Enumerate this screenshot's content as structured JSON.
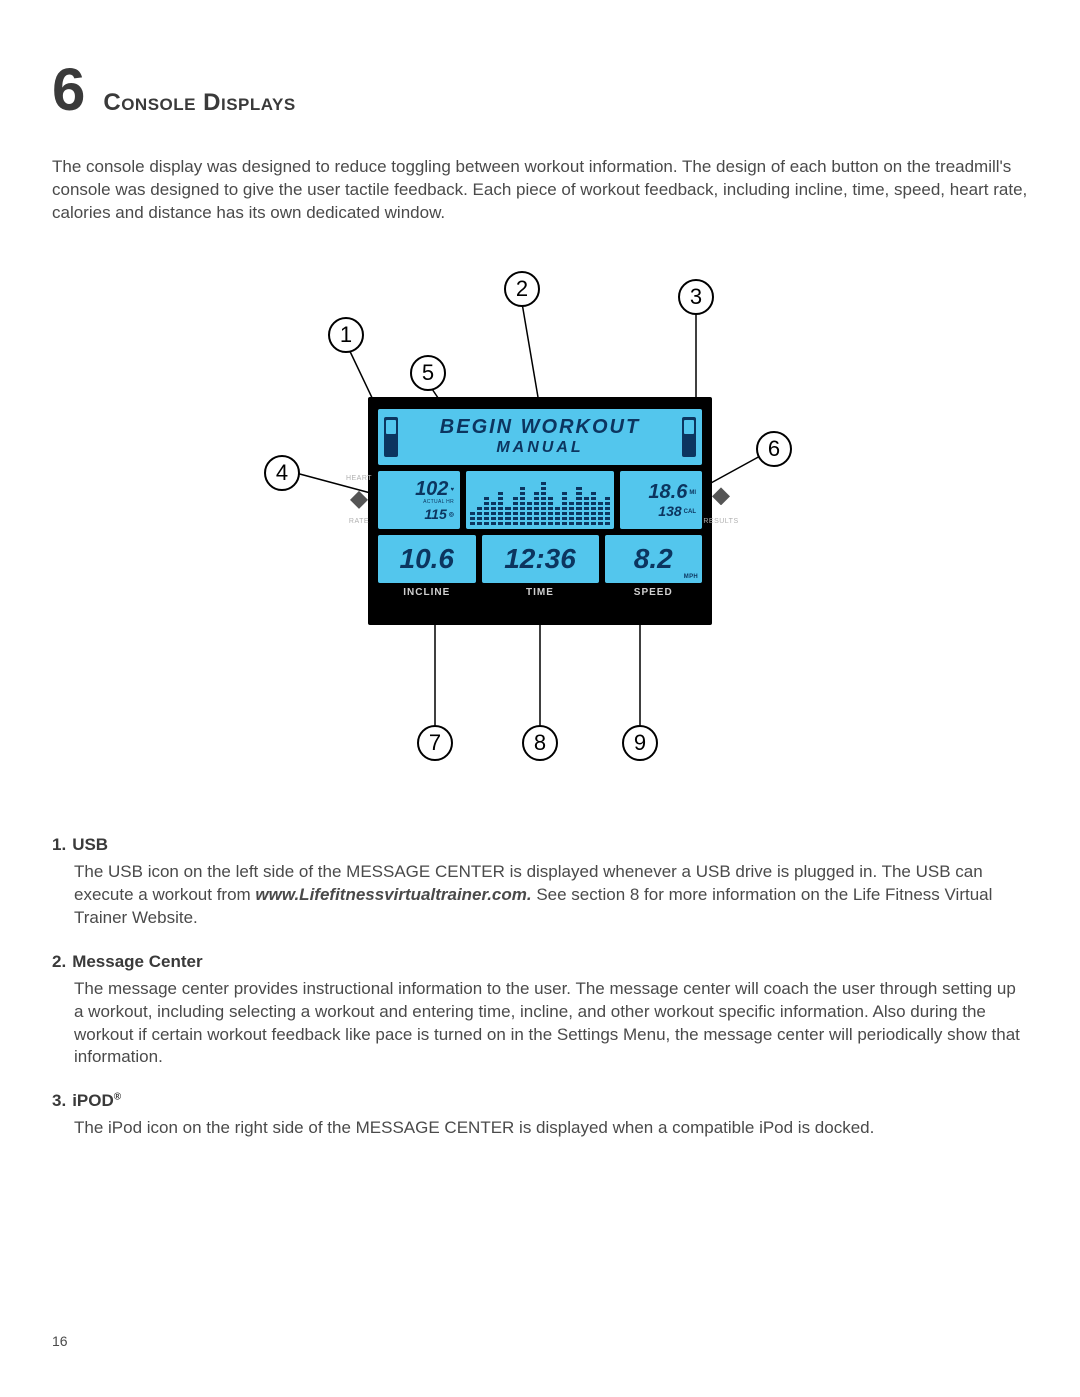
{
  "section": {
    "number": "6",
    "title": "Console Displays"
  },
  "intro": "The console display was designed to reduce toggling between workout information. The design of each button on the treadmill's console was designed to give the user tactile feedback. Each piece of workout feedback, including incline, time, speed, heart rate, calories and distance has its own dedicated window.",
  "console": {
    "message_center": {
      "line1": "BEGIN WORKOUT",
      "line2": "MANUAL",
      "usb_label": "USB",
      "ipod_label": "iPOD"
    },
    "heart": {
      "top_value": "102",
      "top_unit": "♥",
      "top_sub": "ACTUAL HR",
      "bot_value": "115",
      "bot_unit": "◎",
      "side_top": "HEART",
      "side_bot": "RATE"
    },
    "results": {
      "top_value": "18.6",
      "top_unit": "MI",
      "bot_value": "138",
      "bot_unit": "CAL",
      "side_top": "",
      "side_bot": "RESULTS"
    },
    "bars": [
      3,
      4,
      6,
      5,
      7,
      4,
      6,
      8,
      5,
      7,
      9,
      6,
      4,
      7,
      5,
      8,
      6,
      7,
      5,
      6
    ],
    "bottom": {
      "incline": {
        "value": "10.6",
        "label": "INCLINE"
      },
      "time": {
        "value": "12:36",
        "label": "TIME"
      },
      "speed": {
        "value": "8.2",
        "unit": "MPH",
        "label": "SPEED"
      }
    }
  },
  "callouts": {
    "c1": "1",
    "c2": "2",
    "c3": "3",
    "c4": "4",
    "c5": "5",
    "c6": "6",
    "c7": "7",
    "c8": "8",
    "c9": "9"
  },
  "defs": [
    {
      "num": "1.",
      "title": "USB",
      "body_pre": "The USB icon on the left side of the MESSAGE CENTER is displayed whenever a USB drive is plugged in. The USB can execute a workout from ",
      "body_bold": "www.Lifefitnessvirtualtrainer.com.",
      "body_post": " See section 8 for more information on the Life Fitness Virtual Trainer Website."
    },
    {
      "num": "2.",
      "title": "Message Center",
      "body": "The message center provides instructional information to the user. The message center will coach the user through setting up a workout, including selecting a workout and entering time, incline, and other workout specific information. Also during the workout if certain workout feedback like pace is turned on in the Settings Menu, the message center will periodically show that information."
    },
    {
      "num": "3.",
      "title": "iPOD",
      "sup": "®",
      "body": "The iPod icon on the right side of the MESSAGE CENTER is displayed when a compatible iPod is docked."
    }
  ],
  "page_number": "16",
  "colors": {
    "lcd_bg": "#53c6ed",
    "lcd_fg": "#0c355f",
    "console_bg": "#000000",
    "text": "#4a4a4a"
  }
}
